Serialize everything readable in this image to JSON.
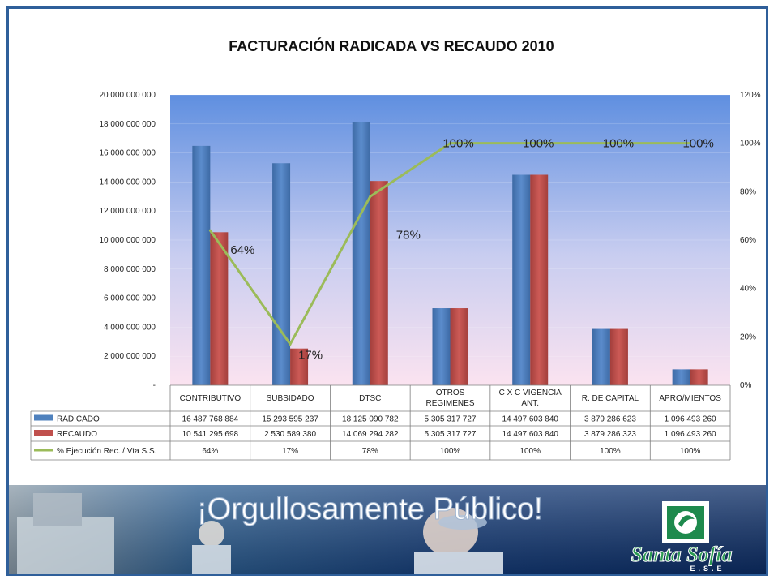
{
  "colors": {
    "radicado": "#4f81bd",
    "recaudo": "#c0504d",
    "line": "#9bbb59",
    "frame": "#2f5f9a"
  },
  "chart_data": {
    "type": "bar",
    "title": "FACTURACIÓN RADICADA VS RECAUDO 2010",
    "categories": [
      "CONTRIBUTIVO",
      "SUBSIDADO",
      "DTSC",
      "OTROS REGIMENES",
      "C X C VIGENCIA ANT.",
      "R. DE CAPITAL",
      "APRO/MIENTOS"
    ],
    "y_left": {
      "min": 0,
      "max": 20000000000,
      "step": 2000000000,
      "tick_labels": [
        "-",
        "2 000 000 000",
        "4 000 000 000",
        "6 000 000 000",
        "8 000 000 000",
        "10 000 000 000",
        "12 000 000 000",
        "14 000 000 000",
        "16 000 000 000",
        "18 000 000 000",
        "20 000 000 000"
      ]
    },
    "y_right": {
      "min": 0,
      "max": 120,
      "step": 20,
      "tick_labels": [
        "0%",
        "20%",
        "40%",
        "60%",
        "80%",
        "100%",
        "120%"
      ]
    },
    "series": [
      {
        "name": "RADICADO",
        "kind": "bar",
        "values": [
          16487768884,
          15293595237,
          18125090782,
          5305317727,
          14497603840,
          3879286623,
          1096493260
        ],
        "value_labels": [
          "16 487 768 884",
          "15 293 595 237",
          "18 125 090 782",
          "5 305 317 727",
          "14 497 603 840",
          "3 879 286 623",
          "1 096 493 260"
        ]
      },
      {
        "name": "RECAUDO",
        "kind": "bar",
        "values": [
          10541295698,
          2530589380,
          14069294282,
          5305317727,
          14497603840,
          3879286323,
          1096493260
        ],
        "value_labels": [
          "10 541 295 698",
          "2 530 589 380",
          "14 069 294 282",
          "5 305 317 727",
          "14 497 603 840",
          "3 879 286 323",
          "1 096 493 260"
        ]
      },
      {
        "name": "% Ejecución Rec. / Vta S.S.",
        "kind": "line",
        "axis": "right",
        "values": [
          64,
          17,
          78,
          100,
          100,
          100,
          100
        ],
        "value_labels": [
          "64%",
          "17%",
          "78%",
          "100%",
          "100%",
          "100%",
          "100%"
        ]
      }
    ],
    "data_labels": [
      "64%",
      "17%",
      "78%",
      "100%",
      "100%",
      "100%",
      "100%"
    ],
    "legend": "data-table-below"
  },
  "banner": {
    "slogan": "¡Orgullosamente Público!",
    "logo_name": "Santa Sofía",
    "logo_sub": "E.S.E"
  }
}
